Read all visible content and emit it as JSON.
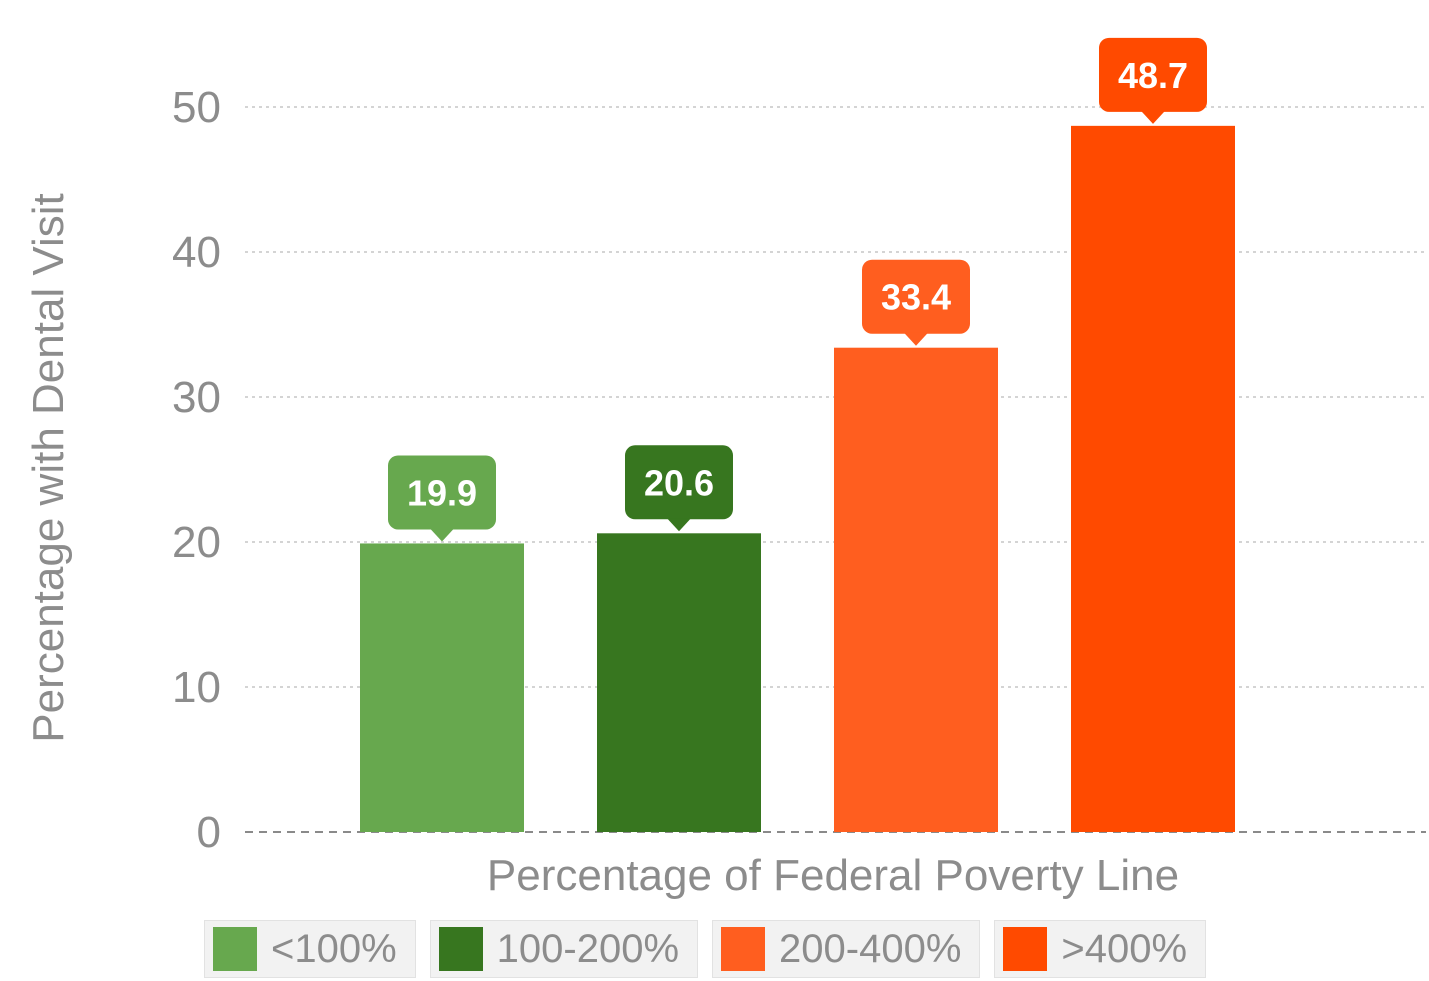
{
  "chart_data": {
    "type": "bar",
    "xlabel": "Percentage of Federal Poverty Line",
    "ylabel": "Percentage with Dental Visit",
    "ylim": [
      0,
      50
    ],
    "yticks": [
      "0",
      "10",
      "20",
      "30",
      "40",
      "50"
    ],
    "grid": true,
    "legend_position": "bottom",
    "categories": [
      "<100%",
      "100-200%",
      "200-400%",
      ">400%"
    ],
    "values": [
      19.9,
      20.6,
      33.4,
      48.7
    ],
    "data_labels": [
      "19.9",
      "20.6",
      "33.4",
      "48.7"
    ],
    "colors": [
      "#67a84e",
      "#37761f",
      "#ff5e1f",
      "#ff4a00"
    ]
  },
  "legend": [
    {
      "label": "<100%",
      "color": "#67a84e"
    },
    {
      "label": "100-200%",
      "color": "#37761f"
    },
    {
      "label": "200-400%",
      "color": "#ff5e1f"
    },
    {
      "label": ">400%",
      "color": "#ff4a00"
    }
  ]
}
